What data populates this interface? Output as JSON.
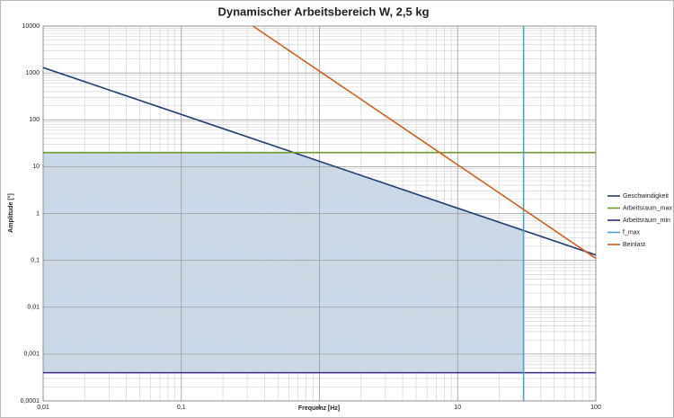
{
  "chart_data": {
    "type": "line",
    "title": "Dynamischer Arbeitsbereich W, 2,5 kg",
    "xlabel": "Frequenz [Hz]",
    "ylabel": "Amplitude [°]",
    "xscale": "log",
    "yscale": "log",
    "grid": true,
    "legend": "right",
    "xlim": [
      0.01,
      100
    ],
    "xticks": [
      {
        "value": 0.01,
        "label": "0,01"
      },
      {
        "value": 0.1,
        "label": "0,1"
      },
      1,
      10,
      100
    ],
    "ylim": [
      0.0001,
      10000
    ],
    "yticks": [
      {
        "value": 0.0001,
        "label": "0,0001"
      },
      {
        "value": 0.001,
        "label": "0,001"
      },
      {
        "value": 0.01,
        "label": "0,01"
      },
      {
        "value": 0.1,
        "label": "0,1"
      },
      1,
      10,
      100,
      1000,
      10000
    ],
    "fill_color": "#c9d9ea",
    "series": [
      {
        "name": "Geschwindigkeit",
        "color": "#1f3f73",
        "x": [
          0.01,
          100
        ],
        "values": [
          1300,
          0.13
        ]
      },
      {
        "name": "Arbeitsraum_max",
        "color": "#6f9a2c",
        "x": [
          0.01,
          100
        ],
        "values": [
          20,
          20
        ]
      },
      {
        "name": "Arbeitsraum_min",
        "color": "#3e2a85",
        "x": [
          0.01,
          100
        ],
        "values": [
          0.0004,
          0.0004
        ]
      },
      {
        "name": "f_max",
        "color": "#4ba3c9",
        "x": [
          30,
          30
        ],
        "values": [
          0.0001,
          10000
        ]
      },
      {
        "name": "Beinlast",
        "color": "#d2601f",
        "x": [
          0.33,
          100
        ],
        "values": [
          10000,
          0.11
        ]
      }
    ]
  }
}
